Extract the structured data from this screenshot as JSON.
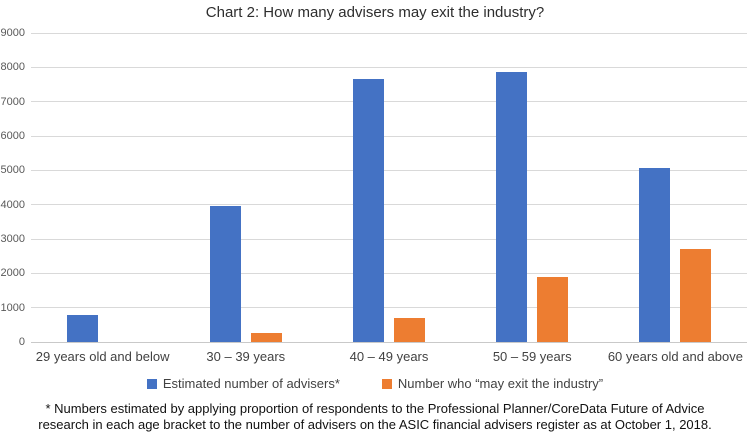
{
  "chart": {
    "title": "Chart 2: How many advisers may exit the industry?",
    "footnote": "* Numbers estimated by applying proportion of respondents to the Professional Planner/CoreData Future of Advice research in each age bracket to the number of advisers on the ASIC financial advisers register as at October 1, 2018."
  },
  "chart_data": {
    "type": "bar",
    "title": "Chart 2: How many advisers may exit the industry?",
    "categories": [
      "29 years old and below",
      "30 – 39 years",
      "40 – 49 years",
      "50 – 59 years",
      "60 years old and above"
    ],
    "series": [
      {
        "name": "Estimated number of advisers*",
        "color": "#4472C4",
        "values": [
          800,
          3950,
          7650,
          7850,
          5080
        ]
      },
      {
        "name": "Number who “may exit the industry”",
        "color": "#ED7D31",
        "values": [
          0,
          250,
          700,
          1900,
          2700
        ]
      }
    ],
    "xlabel": "",
    "ylabel": "",
    "ylim": [
      0,
      9000
    ],
    "y_ticks": [
      9000,
      8000,
      7000,
      6000,
      5000,
      4000,
      3000,
      2000,
      1000,
      0
    ],
    "grid": true,
    "legend_position": "bottom",
    "gridline_color": "#d9d9d9",
    "axis_line_color": "#c9c9c9"
  }
}
